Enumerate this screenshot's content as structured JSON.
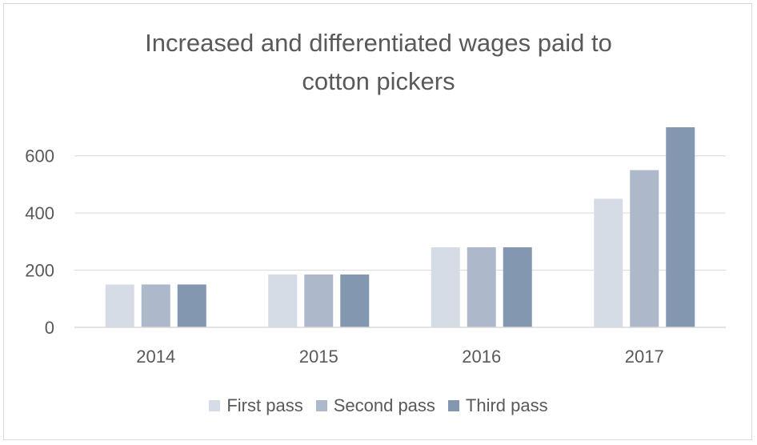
{
  "chart_data": {
    "type": "bar",
    "title": "Increased and differentiated wages paid to cotton pickers",
    "title_lines": [
      "Increased and differentiated wages paid to",
      "cotton pickers"
    ],
    "categories": [
      "2014",
      "2015",
      "2016",
      "2017"
    ],
    "series": [
      {
        "name": "First pass",
        "values": [
          150,
          185,
          280,
          450
        ],
        "color": "#d6dce5"
      },
      {
        "name": "Second pass",
        "values": [
          150,
          185,
          280,
          550
        ],
        "color": "#adb9ca"
      },
      {
        "name": "Third pass",
        "values": [
          150,
          185,
          280,
          700
        ],
        "color": "#8497b0"
      }
    ],
    "yticks": [
      "0",
      "200",
      "400",
      "600"
    ],
    "ylim": [
      0,
      700
    ],
    "grid": true,
    "legend": "bottom",
    "xlabel": "",
    "ylabel": ""
  }
}
